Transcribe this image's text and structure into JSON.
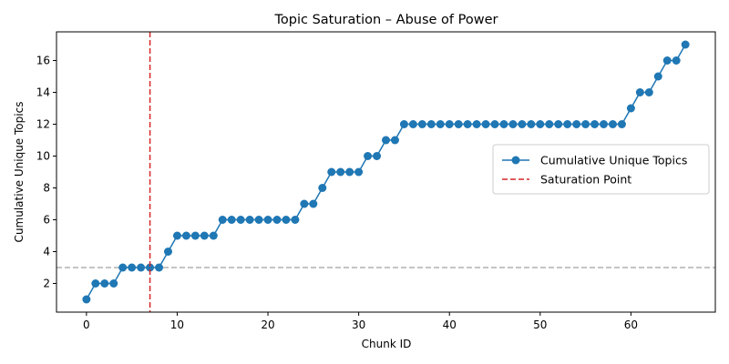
{
  "chart_data": {
    "type": "line",
    "title": "Topic Saturation – Abuse of Power",
    "xlabel": "Chunk ID",
    "ylabel": "Cumulative Unique Topics",
    "xlim": [
      -3.3,
      69.3
    ],
    "ylim": [
      0.2,
      17.8
    ],
    "xticks": [
      0,
      10,
      20,
      30,
      40,
      50,
      60
    ],
    "yticks": [
      2,
      4,
      6,
      8,
      10,
      12,
      14,
      16
    ],
    "grid": false,
    "legend_position": "center-right",
    "series": [
      {
        "name": "Cumulative Unique Topics",
        "color": "#1f77b4",
        "marker": "circle",
        "x": [
          0,
          1,
          2,
          3,
          4,
          5,
          6,
          7,
          8,
          9,
          10,
          11,
          12,
          13,
          14,
          15,
          16,
          17,
          18,
          19,
          20,
          21,
          22,
          23,
          24,
          25,
          26,
          27,
          28,
          29,
          30,
          31,
          32,
          33,
          34,
          35,
          36,
          37,
          38,
          39,
          40,
          41,
          42,
          43,
          44,
          45,
          46,
          47,
          48,
          49,
          50,
          51,
          52,
          53,
          54,
          55,
          56,
          57,
          58,
          59,
          60,
          61,
          62,
          63,
          64,
          65,
          66
        ],
        "y": [
          1,
          2,
          2,
          2,
          3,
          3,
          3,
          3,
          3,
          4,
          5,
          5,
          5,
          5,
          5,
          6,
          6,
          6,
          6,
          6,
          6,
          6,
          6,
          6,
          7,
          7,
          8,
          9,
          9,
          9,
          9,
          10,
          10,
          11,
          11,
          12,
          12,
          12,
          12,
          12,
          12,
          12,
          12,
          12,
          12,
          12,
          12,
          12,
          12,
          12,
          12,
          12,
          12,
          12,
          12,
          12,
          12,
          12,
          12,
          12,
          13,
          14,
          14,
          15,
          16,
          16,
          17
        ]
      }
    ],
    "saturation_line": {
      "name": "Saturation Point",
      "x": 7,
      "color": "#d62728"
    },
    "reference_line": {
      "y": 3,
      "color": "#b0b0b0"
    }
  }
}
